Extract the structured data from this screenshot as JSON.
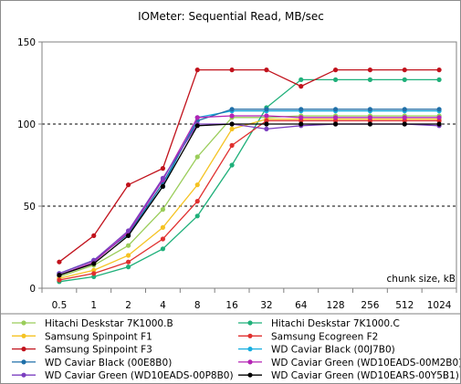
{
  "chart_data": {
    "type": "line",
    "title": "IOMeter: Sequential Read, MB/sec",
    "x_unit_label": "chunk size, kB",
    "categories": [
      "0.5",
      "1",
      "2",
      "4",
      "8",
      "16",
      "32",
      "64",
      "128",
      "256",
      "512",
      "1024"
    ],
    "yticks": [
      "0",
      "50",
      "100",
      "150"
    ],
    "ylim": [
      0,
      150
    ],
    "grid": "horizontal dashed",
    "legend_position": "bottom",
    "series": [
      {
        "name": "Hitachi Deskstar 7K1000.B",
        "color": "#9acd5a",
        "values": [
          7,
          14,
          26,
          48,
          80,
          104,
          104,
          105,
          105,
          105,
          105,
          105
        ]
      },
      {
        "name": "Hitachi Deskstar 7K1000.C",
        "color": "#1fb07a",
        "values": [
          4,
          7,
          13,
          24,
          44,
          75,
          110,
          127,
          127,
          127,
          127,
          127
        ]
      },
      {
        "name": "Samsung Spinpoint F1",
        "color": "#f5c323",
        "values": [
          6,
          11,
          20,
          37,
          63,
          97,
          103,
          103,
          103,
          103,
          103,
          103
        ]
      },
      {
        "name": "Samsung Ecogreen F2",
        "color": "#e0302f",
        "values": [
          5,
          9,
          16,
          30,
          53,
          87,
          102,
          102,
          102,
          102,
          102,
          102
        ]
      },
      {
        "name": "Samsung Spinpoint F3",
        "color": "#c1121c",
        "values": [
          16,
          32,
          63,
          73,
          133,
          133,
          133,
          123,
          133,
          133,
          133,
          133
        ]
      },
      {
        "name": "WD Caviar Black (00J7B0)",
        "color": "#17aee0",
        "values": [
          9,
          17,
          33,
          62,
          104,
          108,
          108,
          108,
          108,
          108,
          108,
          108
        ]
      },
      {
        "name": "WD Caviar Black (00E8B0)",
        "color": "#1f6fa8",
        "values": [
          9,
          17,
          33,
          64,
          102,
          109,
          109,
          109,
          109,
          109,
          109,
          109
        ]
      },
      {
        "name": "WD Caviar Green (WD10EADS-00M2B0)",
        "color": "#b424b4",
        "values": [
          8,
          16,
          34,
          66,
          104,
          105,
          105,
          104,
          104,
          104,
          104,
          104
        ]
      },
      {
        "name": "WD Caviar Green (WD10EADS-00P8B0)",
        "color": "#7b3fc0",
        "values": [
          9,
          17,
          35,
          67,
          100,
          100,
          97,
          99,
          100,
          100,
          100,
          99
        ]
      },
      {
        "name": "WD Caviar Green (WD10EARS-00Y5B1)",
        "color": "#000000",
        "values": [
          8,
          15,
          32,
          62,
          99,
          100,
          100,
          100,
          100,
          100,
          100,
          100
        ]
      }
    ]
  }
}
